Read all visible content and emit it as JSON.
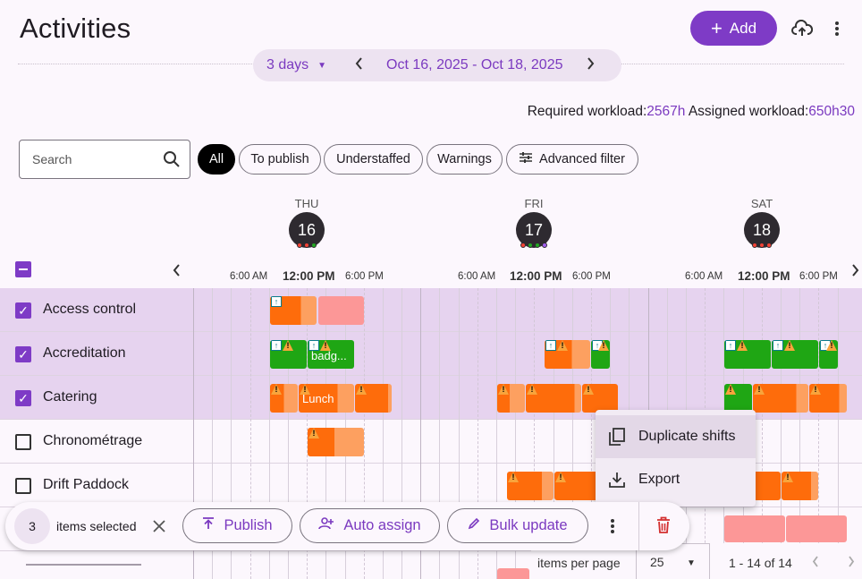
{
  "header": {
    "title": "Activities",
    "add_label": "Add",
    "upload_icon": "cloud-upload-icon",
    "more_icon": "more-vert-icon"
  },
  "daterange": {
    "mode": "3 days",
    "range": "Oct 16, 2025 - Oct 18, 2025"
  },
  "workload": {
    "required_label": "Required workload:",
    "required_value": "2567h",
    "assigned_label": "Assigned workload:",
    "assigned_value": "650h30"
  },
  "search": {
    "placeholder": "Search"
  },
  "filters": [
    "All",
    "To publish",
    "Understaffed",
    "Warnings",
    "Advanced filter"
  ],
  "days": [
    {
      "name": "THU",
      "num": "16",
      "dots": [
        "#f44336",
        "#f44336",
        "#22a822"
      ]
    },
    {
      "name": "FRI",
      "num": "17",
      "dots": [
        "#f44336",
        "#22a822",
        "#22a822",
        "#a35ff0"
      ]
    },
    {
      "name": "SAT",
      "num": "18",
      "dots": [
        "#f44336",
        "#f44336",
        "#f44336"
      ]
    }
  ],
  "times": {
    "am": "6:00 AM",
    "noon": "12:00 PM",
    "pm": "6:00 PM"
  },
  "rows": [
    {
      "label": "Access control",
      "checked": true
    },
    {
      "label": "Accreditation",
      "checked": true
    },
    {
      "label": "Catering",
      "checked": true
    },
    {
      "label": "Chronométrage",
      "checked": false
    },
    {
      "label": "Drift Paddock",
      "checked": false
    }
  ],
  "shift_labels": {
    "badge": "badg...",
    "lunch": "Lunch"
  },
  "colors": {
    "accent": "#7e3bc6",
    "orange": "#fe6c0b",
    "orange_light": "#fda060",
    "green": "#1fa614",
    "pink": "#fc9797"
  },
  "context_menu": {
    "duplicate": "Duplicate shifts",
    "export": "Export"
  },
  "bulk": {
    "count": "3",
    "selected_text": "items selected",
    "publish": "Publish",
    "auto_assign": "Auto assign",
    "bulk_update": "Bulk update"
  },
  "pagination": {
    "label": "items per page",
    "per_page": "25",
    "range": "1 - 14 of 14"
  }
}
